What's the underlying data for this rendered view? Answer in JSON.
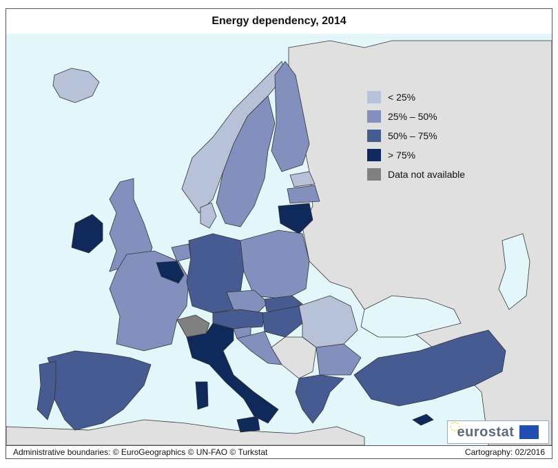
{
  "title": "Energy dependency, 2014",
  "legend": {
    "items": [
      {
        "label": "< 25%",
        "color": "#b7c1d8"
      },
      {
        "label": "25% – 50%",
        "color": "#8390bd"
      },
      {
        "label": "50% – 75%",
        "color": "#465b91"
      },
      {
        "label": "> 75%",
        "color": "#0f2a5a"
      },
      {
        "label": "Data not available",
        "color": "#808080"
      }
    ]
  },
  "logo": {
    "text": "eurostat"
  },
  "footer": {
    "left": "Administrative boundaries: © EuroGeographics © UN-FAO © Turkstat",
    "right": "Cartography: 02/2016"
  },
  "colors": {
    "sea": "#e3f7fb",
    "non_eu_land": "#e0e0e0",
    "class_lt25": "#b7c1d8",
    "class_25_50": "#8390bd",
    "class_50_75": "#465b91",
    "class_gt75": "#0f2a5a",
    "no_data": "#808080"
  }
}
